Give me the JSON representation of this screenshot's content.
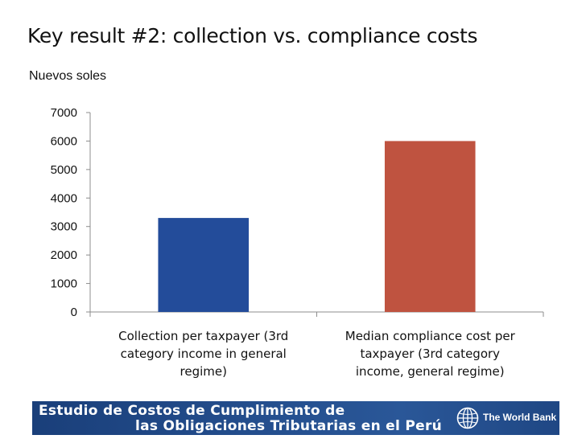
{
  "slide": {
    "title": "Key result #2: collection vs. compliance costs"
  },
  "banner": {
    "line1": "Estudio de Costos de Cumplimiento de",
    "line2": "las Obligaciones Tributarias en el Perú",
    "org_name": "The World Bank",
    "logo_icon": "world-bank-globe-icon"
  },
  "chart_data": {
    "type": "bar",
    "title": "",
    "xlabel": "",
    "ylabel": "Nuevos soles",
    "ylim": [
      0,
      7000
    ],
    "yticks": [
      0,
      1000,
      2000,
      3000,
      4000,
      5000,
      6000,
      7000
    ],
    "grid": false,
    "legend": "none",
    "categories": [
      [
        "Collection per taxpayer (3rd",
        "category income in general",
        "regime)"
      ],
      [
        "Median compliance cost per",
        "taxpayer (3rd category",
        "income, general regime)"
      ]
    ],
    "values": [
      3300,
      6000
    ],
    "colors": [
      "#234c9a",
      "#bf5340"
    ]
  }
}
